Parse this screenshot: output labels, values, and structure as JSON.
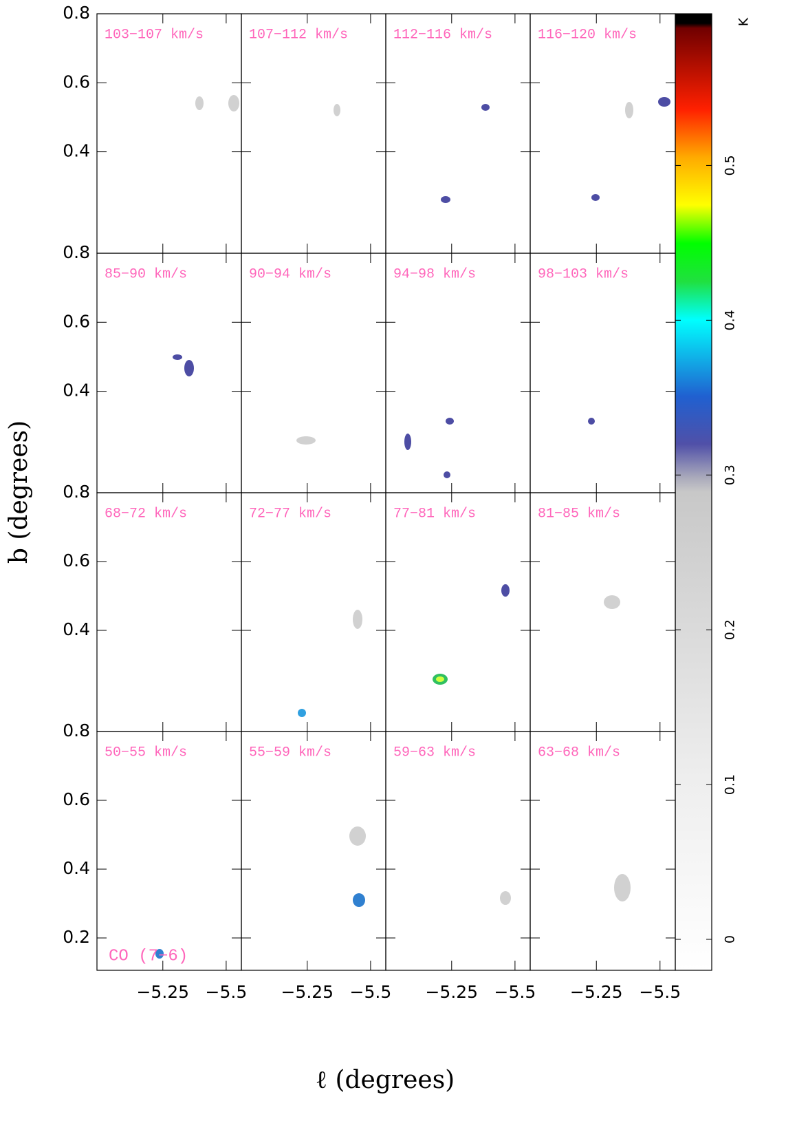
{
  "chart_data": {
    "type": "channel-map",
    "xlabel": "ℓ (degrees)",
    "ylabel": "b (degrees)",
    "xlim": [
      -4.99,
      -5.56
    ],
    "ylim": [
      0.106,
      0.8
    ],
    "xticks": [
      {
        "value": -5.25,
        "label": "−5.25"
      },
      {
        "value": -5.5,
        "label": "−5.5"
      }
    ],
    "panel_rows": [
      {
        "yticks": [
          0.8,
          0.6,
          0.4
        ],
        "panels": [
          "103−107 km/s",
          "107−112 km/s",
          "112−116 km/s",
          "116−120 km/s"
        ]
      },
      {
        "yticks": [
          0.8,
          0.6,
          0.4
        ],
        "panels": [
          "85−90 km/s",
          "90−94 km/s",
          "94−98 km/s",
          "98−103 km/s"
        ]
      },
      {
        "yticks": [
          0.8,
          0.6,
          0.4
        ],
        "panels": [
          "68−72 km/s",
          "72−77 km/s",
          "77−81 km/s",
          "81−85 km/s"
        ]
      },
      {
        "yticks": [
          0.8,
          0.6,
          0.4,
          0.2
        ],
        "panels": [
          "50−55 km/s",
          "55−59 km/s",
          "59−63 km/s",
          "63−68 km/s"
        ]
      }
    ],
    "annotation": "CO (7−6)",
    "colorbar": {
      "label": "K",
      "lim": [
        -0.02,
        0.598
      ],
      "ticks": [
        0,
        0.1,
        0.2,
        0.3,
        0.4,
        0.5
      ]
    }
  }
}
